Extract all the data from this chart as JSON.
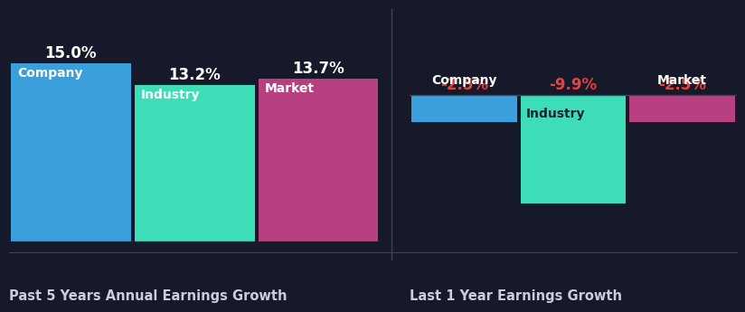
{
  "background_color": "#151929",
  "left_title": "Past 5 Years Annual Earnings Growth",
  "right_title": "Last 1 Year Earnings Growth",
  "left_bars": [
    {
      "label": "Company",
      "value": 15.0,
      "color": "#3a9fdb"
    },
    {
      "label": "Industry",
      "value": 13.2,
      "color": "#3dddb8"
    },
    {
      "label": "Market",
      "value": 13.7,
      "color": "#b84080"
    }
  ],
  "right_bars": [
    {
      "label": "Company",
      "value": -2.5,
      "color": "#3a9fdb"
    },
    {
      "label": "Industry",
      "value": -9.9,
      "color": "#3dddb8"
    },
    {
      "label": "Market",
      "value": -2.5,
      "color": "#b84080"
    }
  ],
  "label_color_white": "#ffffff",
  "label_color_dark": "#1a2035",
  "value_color_positive": "#ffffff",
  "value_color_negative": "#e84040",
  "title_color": "#ccccdd",
  "separator_color": "#404060",
  "title_fontsize": 10.5,
  "value_fontsize": 12,
  "label_fontsize": 10
}
